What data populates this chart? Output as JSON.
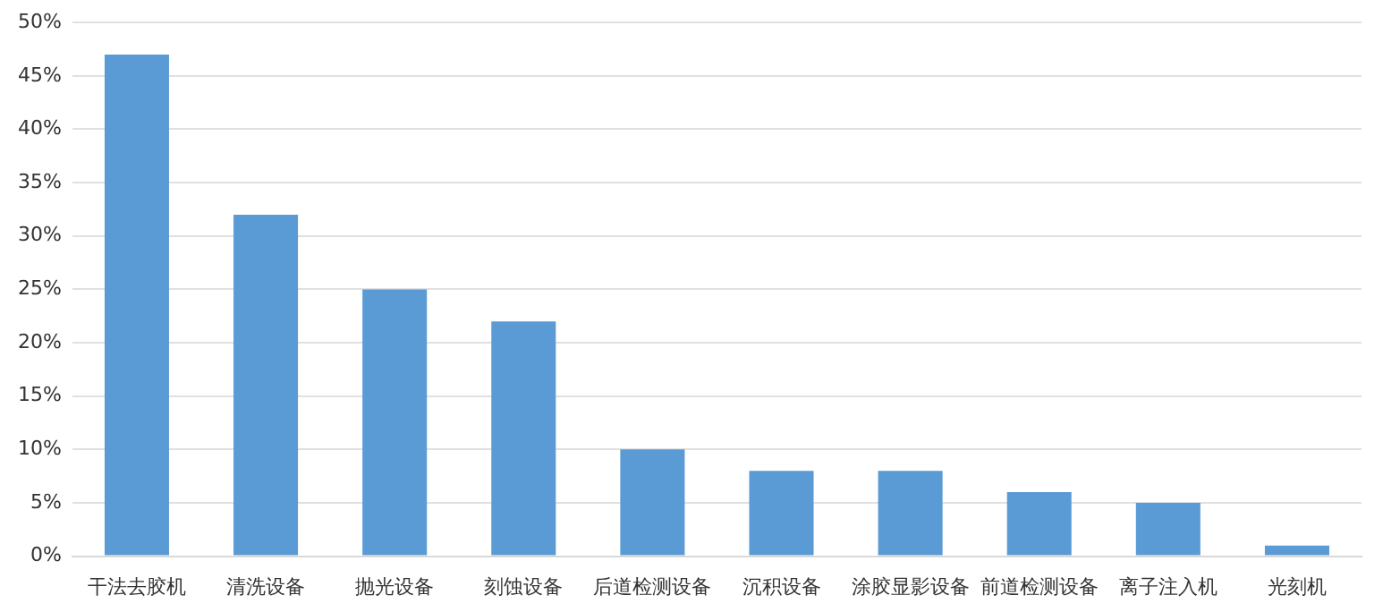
{
  "chart_data": {
    "type": "bar",
    "categories": [
      "干法去胶机",
      "清洗设备",
      "抛光设备",
      "刻蚀设备",
      "后道检测设备",
      "沉积设备",
      "涂胶显影设备",
      "前道检测设备",
      "离子注入机",
      "光刻机"
    ],
    "values": [
      47,
      32,
      25,
      22,
      10,
      8,
      8,
      6,
      5,
      1
    ],
    "color": "#5b9bd5",
    "ylim": [
      0,
      50
    ],
    "yticks": [
      {
        "value": 0,
        "label": "0%"
      },
      {
        "value": 5,
        "label": "5%"
      },
      {
        "value": 10,
        "label": "10%"
      },
      {
        "value": 15,
        "label": "15%"
      },
      {
        "value": 20,
        "label": "20%"
      },
      {
        "value": 25,
        "label": "25%"
      },
      {
        "value": 30,
        "label": "30%"
      },
      {
        "value": 35,
        "label": "35%"
      },
      {
        "value": 40,
        "label": "40%"
      },
      {
        "value": 45,
        "label": "45%"
      },
      {
        "value": 50,
        "label": "50%"
      }
    ],
    "grid": "y"
  }
}
